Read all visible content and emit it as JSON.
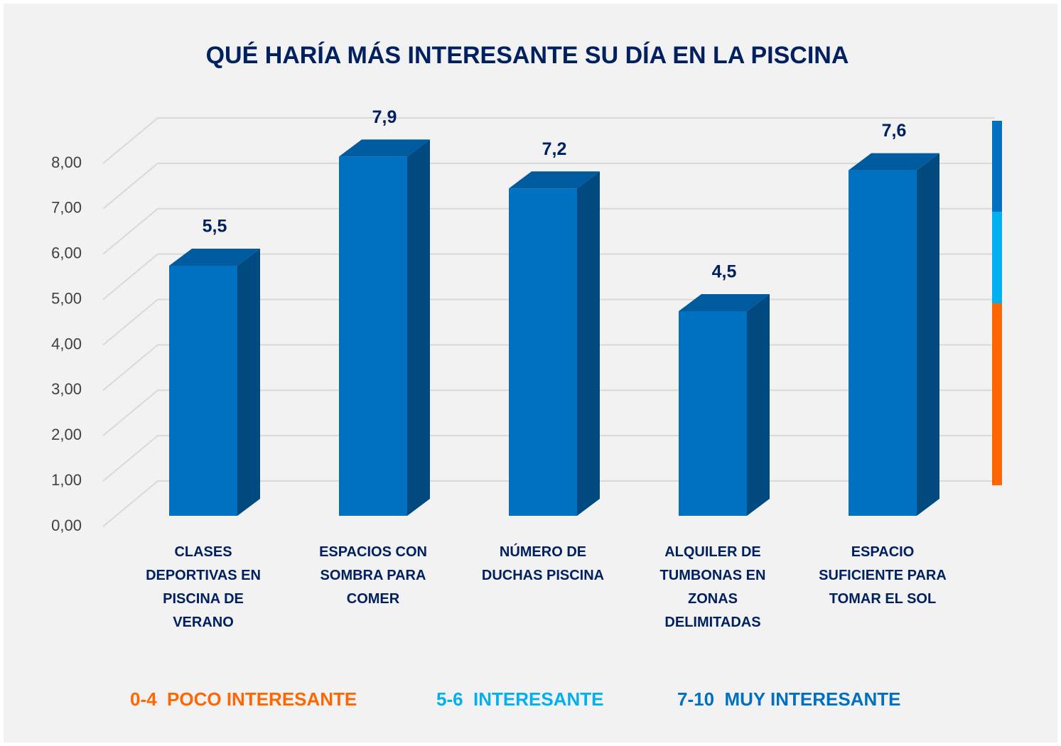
{
  "chart_data": {
    "type": "bar3d",
    "title": "QUÉ HARÍA MÁS INTERESANTE SU DÍA EN LA PISCINA",
    "categories": [
      "CLASES DEPORTIVAS EN PISCINA DE VERANO",
      "ESPACIOS CON SOMBRA PARA COMER",
      "NÚMERO DE DUCHAS PISCINA",
      "ALQUILER DE TUMBONAS EN ZONAS DELIMITADAS",
      "ESPACIO SUFICIENTE PARA TOMAR EL SOL"
    ],
    "values": [
      5.5,
      7.9,
      7.2,
      4.5,
      7.6
    ],
    "value_labels": [
      "5,5",
      "7,9",
      "7,2",
      "4,5",
      "7,6"
    ],
    "color": "#0070c0",
    "ylim": [
      0,
      8
    ],
    "yticks": [
      {
        "value": 0,
        "label": "0,00"
      },
      {
        "value": 1,
        "label": "1,00"
      },
      {
        "value": 2,
        "label": "2,00"
      },
      {
        "value": 3,
        "label": "3,00"
      },
      {
        "value": 4,
        "label": "4,00"
      },
      {
        "value": 5,
        "label": "5,00"
      },
      {
        "value": 6,
        "label": "6,00"
      },
      {
        "value": 7,
        "label": "7,00"
      },
      {
        "value": 8,
        "label": "8,00"
      }
    ],
    "grid": true,
    "legend": [
      {
        "name": "0-4  POCO INTERESANTE",
        "color": "#ff6600"
      },
      {
        "name": "5-6  INTERESANTE",
        "color": "#00b0f0"
      },
      {
        "name": "7-10  MUY INTERESANTE",
        "color": "#0070c0"
      }
    ]
  }
}
